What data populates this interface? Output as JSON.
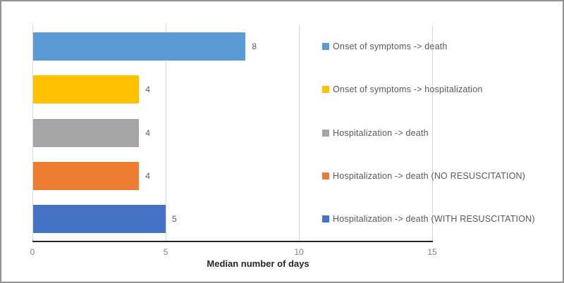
{
  "chart_data": {
    "type": "bar",
    "orientation": "horizontal",
    "title": "",
    "xlabel": "Median number of days",
    "ylabel": "",
    "xlim": [
      0,
      15
    ],
    "xticks": [
      0,
      5,
      10,
      15
    ],
    "grid": true,
    "legend_position": "right",
    "series": [
      {
        "name": "Onset of symptoms -> death",
        "value": 8,
        "data_label": "8",
        "color": "#5B9BD5"
      },
      {
        "name": "Onset of symptoms -> hospitalization",
        "value": 4,
        "data_label": "4",
        "color": "#FFC000"
      },
      {
        "name": "Hospitalization -> death",
        "value": 4,
        "data_label": "4",
        "color": "#A5A5A5"
      },
      {
        "name": "Hospitalization -> death (NO RESUSCITATION)",
        "value": 4,
        "data_label": "4",
        "color": "#ED7D31"
      },
      {
        "name": "Hospitalization -> death (WITH RESUSCITATION)",
        "value": 5,
        "data_label": "5",
        "color": "#4472C4"
      }
    ],
    "colors": {
      "gridline": "#d9d9d9",
      "axis_line": "#262626",
      "tick_label": "#808080",
      "data_label": "#595959",
      "legend_text": "#595959",
      "frame_border": "#939393",
      "background": "#ffffff"
    }
  }
}
